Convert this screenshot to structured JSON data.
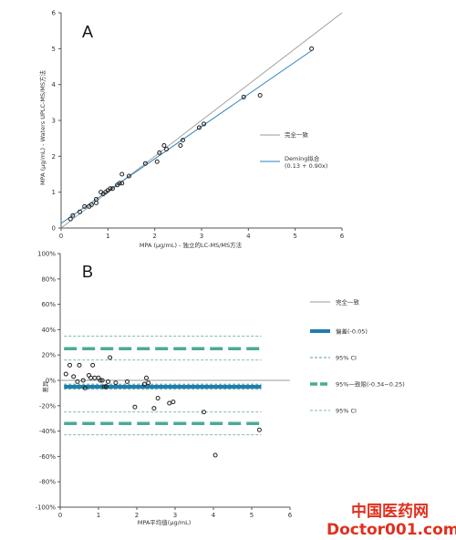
{
  "chart_data": [
    {
      "type": "scatter",
      "panel_label": "A",
      "xlabel": "MPA (μg/mL) - 独立的LC-MS/MS方法",
      "ylabel": "MPA (μg/mL) - Waters UPLC-MS/MS方法",
      "xlim": [
        0,
        6
      ],
      "ylim": [
        0,
        6
      ],
      "xticks": [
        "0",
        "1",
        "2",
        "3",
        "4",
        "5",
        "6"
      ],
      "yticks": [
        "0",
        "1",
        "2",
        "3",
        "4",
        "5",
        "6"
      ],
      "grid": false,
      "legend_position": "right",
      "points": [
        [
          0.2,
          0.25
        ],
        [
          0.25,
          0.35
        ],
        [
          0.4,
          0.45
        ],
        [
          0.5,
          0.6
        ],
        [
          0.6,
          0.6
        ],
        [
          0.65,
          0.65
        ],
        [
          0.75,
          0.7
        ],
        [
          0.75,
          0.8
        ],
        [
          0.85,
          1.0
        ],
        [
          0.9,
          0.95
        ],
        [
          0.95,
          1.0
        ],
        [
          1.0,
          1.05
        ],
        [
          1.05,
          1.1
        ],
        [
          1.1,
          1.1
        ],
        [
          1.2,
          1.2
        ],
        [
          1.25,
          1.25
        ],
        [
          1.3,
          1.25
        ],
        [
          1.3,
          1.5
        ],
        [
          1.45,
          1.45
        ],
        [
          1.8,
          1.8
        ],
        [
          2.05,
          1.85
        ],
        [
          2.1,
          2.1
        ],
        [
          2.2,
          2.3
        ],
        [
          2.25,
          2.2
        ],
        [
          2.55,
          2.3
        ],
        [
          2.6,
          2.45
        ],
        [
          2.95,
          2.8
        ],
        [
          3.05,
          2.9
        ],
        [
          3.9,
          3.65
        ],
        [
          4.25,
          3.7
        ],
        [
          5.35,
          5.0
        ]
      ],
      "lines": [
        {
          "name": "完全一致",
          "color": "#9a9a9a",
          "x": [
            0,
            6
          ],
          "y": [
            0,
            6
          ]
        },
        {
          "name": "Deming拟合",
          "note": "(0.13 + 0.90x)",
          "color": "#2e7fb8",
          "x": [
            0,
            5.35
          ],
          "y": [
            0.13,
            4.945
          ]
        }
      ]
    },
    {
      "type": "scatter",
      "panel_label": "B",
      "xlabel": "MPA平均值(μg/mL)",
      "ylabel": "差异",
      "xlim": [
        0,
        6
      ],
      "ylim": [
        -100,
        100
      ],
      "xticks": [
        "0",
        "1",
        "2",
        "3",
        "4",
        "5",
        "6"
      ],
      "yticks": [
        "100%",
        "80%",
        "60%",
        "40%",
        "20%",
        "0%",
        "-20%",
        "-40%",
        "-60%",
        "-80%",
        "-100%"
      ],
      "grid": false,
      "legend_position": "right",
      "points": [
        [
          0.15,
          5
        ],
        [
          0.25,
          12
        ],
        [
          0.35,
          3
        ],
        [
          0.45,
          -1
        ],
        [
          0.5,
          12
        ],
        [
          0.6,
          0
        ],
        [
          0.65,
          -6
        ],
        [
          0.75,
          4
        ],
        [
          0.8,
          2
        ],
        [
          0.85,
          12
        ],
        [
          0.9,
          2
        ],
        [
          1.0,
          2
        ],
        [
          1.05,
          0
        ],
        [
          1.1,
          0
        ],
        [
          1.15,
          -5
        ],
        [
          1.2,
          -5
        ],
        [
          1.25,
          -1
        ],
        [
          1.3,
          18
        ],
        [
          1.45,
          -2
        ],
        [
          1.75,
          -1
        ],
        [
          1.95,
          -21
        ],
        [
          2.2,
          -3
        ],
        [
          2.25,
          2
        ],
        [
          2.3,
          -2
        ],
        [
          2.45,
          -22
        ],
        [
          2.55,
          -14
        ],
        [
          2.85,
          -18
        ],
        [
          2.95,
          -17
        ],
        [
          3.75,
          -25
        ],
        [
          4.05,
          -59
        ],
        [
          5.2,
          -39
        ]
      ],
      "lines": [
        {
          "name": "完全一致",
          "color": "#9a9a9a",
          "y": 0,
          "style": "solid-thin"
        },
        {
          "name": "偏差(-0.05)",
          "color": "#1f7fa8",
          "y": -5,
          "style": "solid-thick"
        },
        {
          "name": "95% CI",
          "color": "#1f7fa8",
          "y_values": [
            -3,
            -7
          ],
          "style": "dashed-thin"
        },
        {
          "name": "95%一致限(-0.34~0.25)",
          "color": "#4aab94",
          "y_values": [
            25,
            -34
          ],
          "style": "dashed-thick"
        },
        {
          "name": "95% CI",
          "color": "#4aab94",
          "y_values": [
            35,
            16,
            -25,
            -43
          ],
          "style": "dashed-thin"
        }
      ]
    }
  ],
  "watermark": {
    "line1": "中国医药网",
    "line2": "Doctor001.com"
  },
  "colors": {
    "identity": "#9a9a9a",
    "deming": "#2e7fb8",
    "bias": "#1f7fa8",
    "loa": "#4aab94",
    "watermark": "#e0301e"
  }
}
